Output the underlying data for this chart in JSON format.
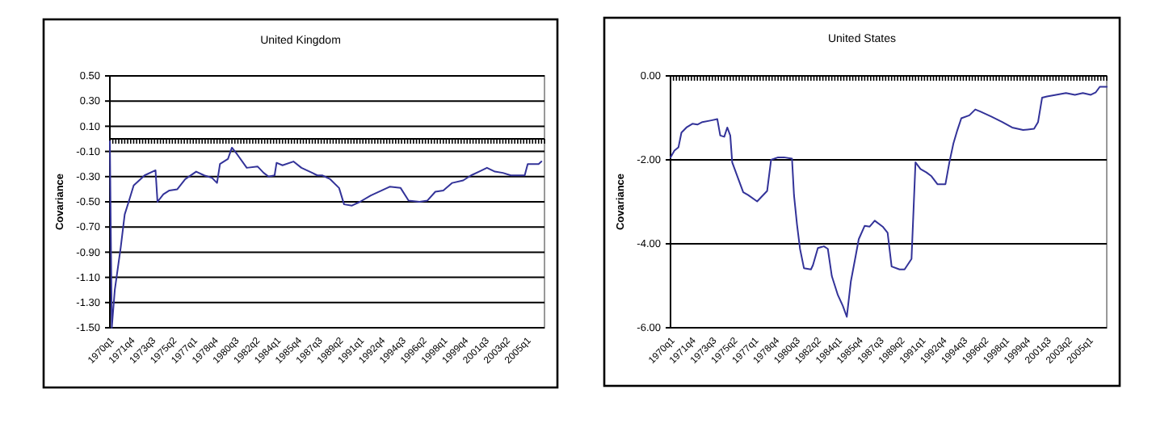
{
  "chart_data": [
    {
      "type": "line",
      "title": "United Kingdom",
      "ylabel": "Covariance",
      "grid": "y",
      "marker": "none",
      "line_style": "solid",
      "xlim": [
        "1970-01",
        "2006-07"
      ],
      "ylim": [
        -1.5,
        0.5
      ],
      "xticks": [
        {
          "value": "1970-01",
          "label": "1970q1"
        },
        {
          "value": "1971-10",
          "label": "1971q4"
        },
        {
          "value": "1973-07",
          "label": "1973q3"
        },
        {
          "value": "1975-04",
          "label": "1975q2"
        },
        {
          "value": "1977-01",
          "label": "1977q1"
        },
        {
          "value": "1978-10",
          "label": "1978q4"
        },
        {
          "value": "1980-07",
          "label": "1980q3"
        },
        {
          "value": "1982-04",
          "label": "1982q2"
        },
        {
          "value": "1984-01",
          "label": "1984q1"
        },
        {
          "value": "1985-10",
          "label": "1985q4"
        },
        {
          "value": "1987-07",
          "label": "1987q3"
        },
        {
          "value": "1989-04",
          "label": "1989q2"
        },
        {
          "value": "1991-01",
          "label": "1991q1"
        },
        {
          "value": "1992-10",
          "label": "1992q4"
        },
        {
          "value": "1994-07",
          "label": "1994q3"
        },
        {
          "value": "1996-04",
          "label": "1996q2"
        },
        {
          "value": "1998-01",
          "label": "1998q1"
        },
        {
          "value": "1999-10",
          "label": "1999q4"
        },
        {
          "value": "2001-07",
          "label": "2001q3"
        },
        {
          "value": "2003-04",
          "label": "2003q2"
        },
        {
          "value": "2005-01",
          "label": "2005q1"
        }
      ],
      "yticks": [
        {
          "value": 0.5,
          "label": "0.50"
        },
        {
          "value": 0.3,
          "label": "0.30"
        },
        {
          "value": 0.1,
          "label": "0.10"
        },
        {
          "value": -0.1,
          "label": "-0.10"
        },
        {
          "value": -0.3,
          "label": "-0.30"
        },
        {
          "value": -0.5,
          "label": "-0.50"
        },
        {
          "value": -0.7,
          "label": "-0.70"
        },
        {
          "value": -0.9,
          "label": "-0.90"
        },
        {
          "value": -1.1,
          "label": "-1.10"
        },
        {
          "value": -1.3,
          "label": "-1.30"
        },
        {
          "value": -1.5,
          "label": "-1.50"
        }
      ],
      "series": [
        {
          "color": "#333399",
          "x": [
            "1970-01",
            "1970-03",
            "1970-06",
            "1970-12",
            "1971-04",
            "1971-08",
            "1972-01",
            "1972-12",
            "1973-08",
            "1973-11",
            "1974-01",
            "1974-07",
            "1975-01",
            "1975-09",
            "1976-05",
            "1977-04",
            "1977-12",
            "1978-08",
            "1979-01",
            "1979-04",
            "1979-12",
            "1980-04",
            "1980-09",
            "1981-07",
            "1982-06",
            "1982-12",
            "1983-05",
            "1983-11",
            "1984-01",
            "1984-07",
            "1985-06",
            "1986-02",
            "1987-01",
            "1987-06",
            "1987-11",
            "1988-07",
            "1989-04",
            "1989-09",
            "1990-05",
            "1991-01",
            "1991-12",
            "1992-11",
            "1993-07",
            "1994-06",
            "1995-02",
            "1996-01",
            "1996-09",
            "1997-05",
            "1998-01",
            "1998-10",
            "1999-09",
            "2000-05",
            "2001-01",
            "2001-09",
            "2002-05",
            "2003-01",
            "2003-09",
            "2004-11",
            "2005-02",
            "2006-01",
            "2006-04"
          ],
          "values": [
            -0.02,
            -1.5,
            -1.2,
            -0.86,
            -0.6,
            -0.5,
            -0.37,
            -0.29,
            -0.26,
            -0.25,
            -0.5,
            -0.44,
            -0.41,
            -0.4,
            -0.32,
            -0.26,
            -0.29,
            -0.31,
            -0.35,
            -0.2,
            -0.16,
            -0.07,
            -0.12,
            -0.23,
            -0.22,
            -0.27,
            -0.3,
            -0.29,
            -0.19,
            -0.21,
            -0.18,
            -0.23,
            -0.27,
            -0.29,
            -0.29,
            -0.32,
            -0.39,
            -0.52,
            -0.53,
            -0.5,
            -0.45,
            -0.41,
            -0.38,
            -0.39,
            -0.49,
            -0.5,
            -0.49,
            -0.42,
            -0.41,
            -0.35,
            -0.33,
            -0.29,
            -0.26,
            -0.23,
            -0.26,
            -0.27,
            -0.29,
            -0.29,
            -0.2,
            -0.2,
            -0.18
          ]
        }
      ]
    },
    {
      "type": "line",
      "title": "United States",
      "ylabel": "Covariance",
      "grid": "y",
      "marker": "none",
      "line_style": "solid",
      "xlim": [
        "1970-01",
        "2006-07"
      ],
      "ylim": [
        -6,
        0
      ],
      "xticks": [
        {
          "value": "1970-01",
          "label": "1970q1"
        },
        {
          "value": "1971-10",
          "label": "1971q4"
        },
        {
          "value": "1973-07",
          "label": "1973q3"
        },
        {
          "value": "1975-04",
          "label": "1975q2"
        },
        {
          "value": "1977-01",
          "label": "1977q1"
        },
        {
          "value": "1978-10",
          "label": "1978q4"
        },
        {
          "value": "1980-07",
          "label": "1980q3"
        },
        {
          "value": "1982-04",
          "label": "1982q2"
        },
        {
          "value": "1984-01",
          "label": "1984q1"
        },
        {
          "value": "1985-10",
          "label": "1985q4"
        },
        {
          "value": "1987-07",
          "label": "1987q3"
        },
        {
          "value": "1989-04",
          "label": "1989q2"
        },
        {
          "value": "1991-01",
          "label": "1991q1"
        },
        {
          "value": "1992-10",
          "label": "1992q4"
        },
        {
          "value": "1994-07",
          "label": "1994q3"
        },
        {
          "value": "1996-04",
          "label": "1996q2"
        },
        {
          "value": "1998-01",
          "label": "1998q1"
        },
        {
          "value": "1999-10",
          "label": "1999q4"
        },
        {
          "value": "2001-07",
          "label": "2001q3"
        },
        {
          "value": "2003-04",
          "label": "2003q2"
        },
        {
          "value": "2005-01",
          "label": "2005q1"
        }
      ],
      "yticks": [
        {
          "value": 0,
          "label": "0.00"
        },
        {
          "value": -2,
          "label": "-2.00"
        },
        {
          "value": -4,
          "label": "-4.00"
        },
        {
          "value": -6,
          "label": "-6.00"
        }
      ],
      "series": [
        {
          "color": "#333399",
          "x": [
            "1970-01",
            "1970-05",
            "1970-09",
            "1970-12",
            "1971-05",
            "1971-11",
            "1972-04",
            "1972-09",
            "1973-06",
            "1973-12",
            "1974-03",
            "1974-07",
            "1974-10",
            "1975-01",
            "1975-03",
            "1975-09",
            "1976-02",
            "1976-07",
            "1977-04",
            "1978-02",
            "1978-06",
            "1979-01",
            "1979-07",
            "1980-03",
            "1980-05",
            "1980-08",
            "1980-11",
            "1981-03",
            "1981-10",
            "1981-12",
            "1982-05",
            "1982-11",
            "1983-03",
            "1983-07",
            "1984-01",
            "1984-06",
            "1984-10",
            "1985-02",
            "1985-07",
            "1985-10",
            "1986-04",
            "1986-09",
            "1987-02",
            "1987-10",
            "1988-03",
            "1988-07",
            "1989-03",
            "1989-08",
            "1990-03",
            "1990-07",
            "1990-12",
            "1991-06",
            "1991-11",
            "1992-05",
            "1993-01",
            "1993-05",
            "1993-09",
            "1994-01",
            "1994-05",
            "1995-01",
            "1995-07",
            "1995-12",
            "1996-11",
            "1997-10",
            "1998-08",
            "1999-07",
            "2000-06",
            "2000-10",
            "2001-02",
            "2001-07",
            "2002-04",
            "2003-02",
            "2003-11",
            "2004-07",
            "2005-03",
            "2005-08",
            "2005-12",
            "2006-07"
          ],
          "values": [
            -1.94,
            -1.78,
            -1.7,
            -1.35,
            -1.23,
            -1.14,
            -1.16,
            -1.1,
            -1.06,
            -1.03,
            -1.42,
            -1.45,
            -1.23,
            -1.42,
            -2.06,
            -2.45,
            -2.77,
            -2.84,
            -2.99,
            -2.74,
            -2.0,
            -1.94,
            -1.94,
            -1.97,
            -2.84,
            -3.54,
            -4.12,
            -4.58,
            -4.61,
            -4.51,
            -4.1,
            -4.06,
            -4.12,
            -4.77,
            -5.22,
            -5.48,
            -5.74,
            -4.9,
            -4.28,
            -3.89,
            -3.57,
            -3.59,
            -3.45,
            -3.59,
            -3.74,
            -4.54,
            -4.61,
            -4.61,
            -4.36,
            -2.06,
            -2.22,
            -2.3,
            -2.39,
            -2.58,
            -2.58,
            -2.06,
            -1.61,
            -1.29,
            -1.01,
            -0.94,
            -0.8,
            -0.85,
            -0.97,
            -1.1,
            -1.23,
            -1.29,
            -1.26,
            -1.1,
            -0.52,
            -0.49,
            -0.45,
            -0.41,
            -0.45,
            -0.41,
            -0.45,
            -0.39,
            -0.26,
            -0.26
          ]
        }
      ]
    }
  ]
}
